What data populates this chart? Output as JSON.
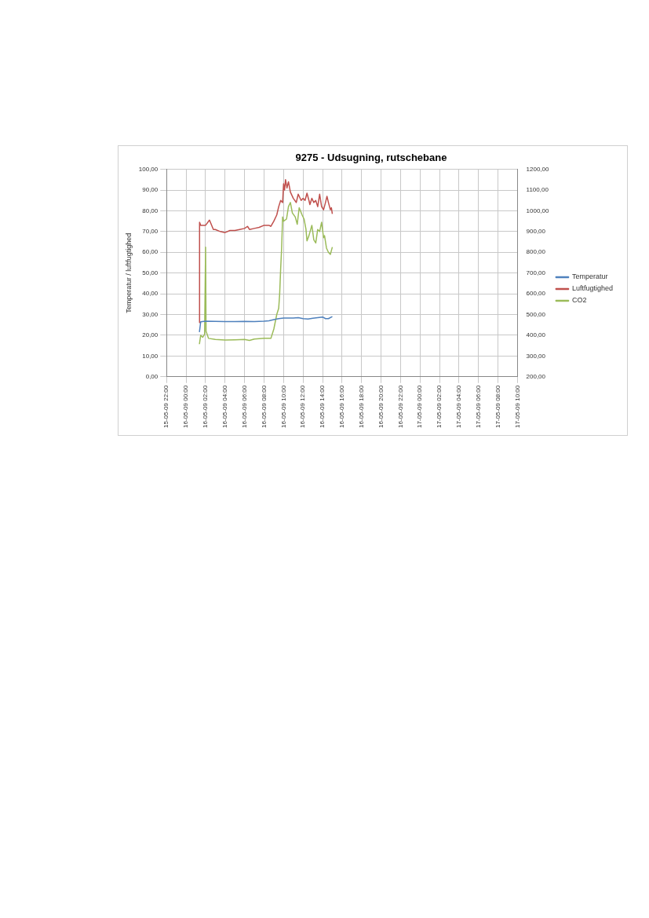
{
  "chart_data": {
    "type": "line",
    "title": "9275 - Udsugning, rutschebane",
    "ylabel": "Temperatur / luftfugtighed",
    "xlim": [
      "--05-15T22:00",
      "--05-17T10:00"
    ],
    "xticks": [
      {
        "value": "--05-15T22:00",
        "label": "15-05-09 22:00"
      },
      {
        "value": "--05-16T00:00",
        "label": "16-05-09 00:00"
      },
      {
        "value": "--05-16T02:00",
        "label": "16-05-09 02:00"
      },
      {
        "value": "--05-16T04:00",
        "label": "16-05-09 04:00"
      },
      {
        "value": "--05-16T06:00",
        "label": "16-05-09 06:00"
      },
      {
        "value": "--05-16T08:00",
        "label": "16-05-09 08:00"
      },
      {
        "value": "--05-16T10:00",
        "label": "16-05-09 10:00"
      },
      {
        "value": "--05-16T12:00",
        "label": "16-05-09 12:00"
      },
      {
        "value": "--05-16T14:00",
        "label": "16-05-09 14:00"
      },
      {
        "value": "--05-16T16:00",
        "label": "16-05-09 16:00"
      },
      {
        "value": "--05-16T18:00",
        "label": "16-05-09 18:00"
      },
      {
        "value": "--05-16T20:00",
        "label": "16-05-09 20:00"
      },
      {
        "value": "--05-16T22:00",
        "label": "16-05-09 22:00"
      },
      {
        "value": "--05-17T00:00",
        "label": "17-05-09 00:00"
      },
      {
        "value": "--05-17T02:00",
        "label": "17-05-09 02:00"
      },
      {
        "value": "--05-17T04:00",
        "label": "17-05-09 04:00"
      },
      {
        "value": "--05-17T06:00",
        "label": "17-05-09 06:00"
      },
      {
        "value": "--05-17T08:00",
        "label": "17-05-09 08:00"
      },
      {
        "value": "--05-17T10:00",
        "label": "17-05-09 10:00"
      }
    ],
    "ylim": [
      0,
      100
    ],
    "yticks": [
      {
        "value": 0,
        "label": "0,00"
      },
      {
        "value": 10,
        "label": "10,00"
      },
      {
        "value": 20,
        "label": "20,00"
      },
      {
        "value": 30,
        "label": "30,00"
      },
      {
        "value": 40,
        "label": "40,00"
      },
      {
        "value": 50,
        "label": "50,00"
      },
      {
        "value": 60,
        "label": "60,00"
      },
      {
        "value": 70,
        "label": "70,00"
      },
      {
        "value": 80,
        "label": "80,00"
      },
      {
        "value": 90,
        "label": "90,00"
      },
      {
        "value": 100,
        "label": "100,00"
      }
    ],
    "y2lim": [
      200,
      1200
    ],
    "y2ticks": [
      {
        "value": 200,
        "label": "200,00"
      },
      {
        "value": 300,
        "label": "300,00"
      },
      {
        "value": 400,
        "label": "400,00"
      },
      {
        "value": 500,
        "label": "500,00"
      },
      {
        "value": 600,
        "label": "600,00"
      },
      {
        "value": 700,
        "label": "700,00"
      },
      {
        "value": 800,
        "label": "800,00"
      },
      {
        "value": 900,
        "label": "900,00"
      },
      {
        "value": 1000,
        "label": "1000,00"
      },
      {
        "value": 1100,
        "label": "1100,00"
      },
      {
        "value": 1200,
        "label": "1200,00"
      }
    ],
    "grid": true,
    "legend": "right",
    "series": [
      {
        "name": "Temperatur",
        "color": "#4f81bd",
        "x": [
          "--05-16T01:22",
          "--05-16T01:30",
          "--05-16T02:00",
          "--05-16T03:00",
          "--05-16T04:00",
          "--05-16T05:00",
          "--05-16T06:00",
          "--05-16T07:00",
          "--05-16T08:00",
          "--05-16T08:30",
          "--05-16T09:00",
          "--05-16T09:30",
          "--05-16T10:00",
          "--05-16T11:00",
          "--05-16T11:30",
          "--05-16T12:00",
          "--05-16T12:30",
          "--05-16T13:00",
          "--05-16T13:30",
          "--05-16T14:00",
          "--05-16T14:18",
          "--05-16T14:36",
          "--05-16T15:00"
        ],
        "values": [
          21.5,
          26.5,
          26.8,
          26.7,
          26.6,
          26.6,
          26.7,
          26.6,
          26.8,
          27,
          27.5,
          28,
          28.3,
          28.3,
          28.5,
          28,
          27.8,
          28.2,
          28.5,
          28.8,
          28,
          28,
          29
        ]
      },
      {
        "name": "Luftfugtighed",
        "color": "#c0504d",
        "x": [
          "--05-16T01:22",
          "--05-16T01:23",
          "--05-16T01:30",
          "--05-16T02:00",
          "--05-16T02:24",
          "--05-16T02:48",
          "--05-16T03:00",
          "--05-16T03:30",
          "--05-16T04:00",
          "--05-16T04:30",
          "--05-16T05:00",
          "--05-16T05:30",
          "--05-16T06:00",
          "--05-16T06:18",
          "--05-16T06:30",
          "--05-16T07:00",
          "--05-16T07:30",
          "--05-16T08:00",
          "--05-16T08:30",
          "--05-16T08:42",
          "--05-16T09:00",
          "--05-16T09:18",
          "--05-16T09:30",
          "--05-16T09:42",
          "--05-16T09:54",
          "--05-16T10:00",
          "--05-16T10:06",
          "--05-16T10:12",
          "--05-16T10:21",
          "--05-16T10:30",
          "--05-16T10:42",
          "--05-16T11:00",
          "--05-16T11:18",
          "--05-16T11:30",
          "--05-16T11:48",
          "--05-16T12:00",
          "--05-16T12:12",
          "--05-16T12:24",
          "--05-16T12:36",
          "--05-16T12:42",
          "--05-16T12:54",
          "--05-16T13:06",
          "--05-16T13:18",
          "--05-16T13:30",
          "--05-16T13:42",
          "--05-16T13:54",
          "--05-16T14:06",
          "--05-16T14:18",
          "--05-16T14:27",
          "--05-16T14:36",
          "--05-16T14:48",
          "--05-16T14:54",
          "--05-16T15:00"
        ],
        "values": [
          26,
          74.5,
          73,
          73,
          75.5,
          71,
          71,
          70,
          69.5,
          70.5,
          70.5,
          71,
          71.5,
          72.5,
          71,
          71.5,
          72,
          73,
          73,
          72.5,
          75,
          78,
          82,
          85,
          84,
          93,
          90,
          95,
          91,
          94,
          89,
          86,
          84,
          88,
          85,
          86,
          85,
          88.5,
          85,
          83,
          86,
          84,
          85,
          82,
          88,
          82,
          80.5,
          84,
          87,
          84,
          80.5,
          81.5,
          78.5
        ]
      },
      {
        "name": "CO2",
        "color": "#9bbb59",
        "axis": "y2",
        "x": [
          "--05-16T01:22",
          "--05-16T01:30",
          "--05-16T01:42",
          "--05-16T01:54",
          "--05-16T02:00",
          "--05-16T02:03",
          "--05-16T02:18",
          "--05-16T03:00",
          "--05-16T04:00",
          "--05-16T05:00",
          "--05-16T06:00",
          "--05-16T06:30",
          "--05-16T07:00",
          "--05-16T08:00",
          "--05-16T08:42",
          "--05-16T09:00",
          "--05-16T09:18",
          "--05-16T09:30",
          "--05-16T09:36",
          "--05-16T09:42",
          "--05-16T09:48",
          "--05-16T09:54",
          "--05-16T10:00",
          "--05-16T10:18",
          "--05-16T10:30",
          "--05-16T10:42",
          "--05-16T10:54",
          "--05-16T11:12",
          "--05-16T11:24",
          "--05-16T11:36",
          "--05-16T11:54",
          "--05-16T12:06",
          "--05-16T12:18",
          "--05-16T12:24",
          "--05-16T12:36",
          "--05-16T12:54",
          "--05-16T13:06",
          "--05-16T13:18",
          "--05-16T13:30",
          "--05-16T13:42",
          "--05-16T13:54",
          "--05-16T14:06",
          "--05-16T14:12",
          "--05-16T14:24",
          "--05-16T14:36",
          "--05-16T14:48",
          "--05-16T15:00"
        ],
        "values": [
          357,
          400,
          390,
          405,
          825,
          420,
          385,
          380,
          377,
          378,
          380,
          375,
          382,
          385,
          385,
          430,
          500,
          530,
          600,
          720,
          820,
          970,
          950,
          960,
          1020,
          1040,
          990,
          970,
          935,
          1015,
          980,
          960,
          910,
          855,
          880,
          930,
          860,
          845,
          910,
          900,
          945,
          870,
          880,
          820,
          800,
          790,
          825
        ]
      }
    ]
  }
}
